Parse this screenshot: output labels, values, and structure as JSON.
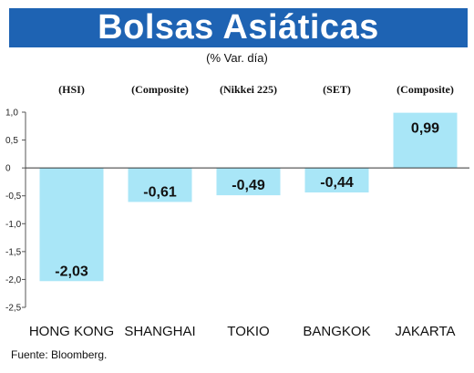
{
  "header": {
    "title": "Bolsas Asiáticas",
    "subtitle": "(% Var. día)"
  },
  "source": "Fuente: Bloomberg.",
  "colors": {
    "title_bg": "#1e63b3",
    "bar": "#a9e6f7",
    "axis": "#555555"
  },
  "chart_data": {
    "type": "bar",
    "categories": [
      "HONG KONG",
      "SHANGHAI",
      "TOKIO",
      "BANGKOK",
      "JAKARTA"
    ],
    "index_labels": [
      "(HSI)",
      "(Composite)",
      "(Nikkei 225)",
      "(SET)",
      "(Composite)"
    ],
    "values": [
      -2.03,
      -0.61,
      -0.49,
      -0.44,
      0.99
    ],
    "value_labels": [
      "-2,03",
      "-0,61",
      "-0,49",
      "-0,44",
      "0,99"
    ],
    "y_ticks": [
      1.0,
      0.5,
      0,
      -0.5,
      -1.0,
      -1.5,
      -2.0,
      -2.5
    ],
    "y_tick_labels": [
      "1,0",
      "0,5",
      "0",
      "-0,5",
      "-1,0",
      "-1,5",
      "-2,0",
      "-2,5"
    ],
    "ylim": [
      -2.5,
      1.0
    ],
    "title": "Bolsas Asiáticas",
    "subtitle": "(% Var. día)",
    "grid": false
  }
}
